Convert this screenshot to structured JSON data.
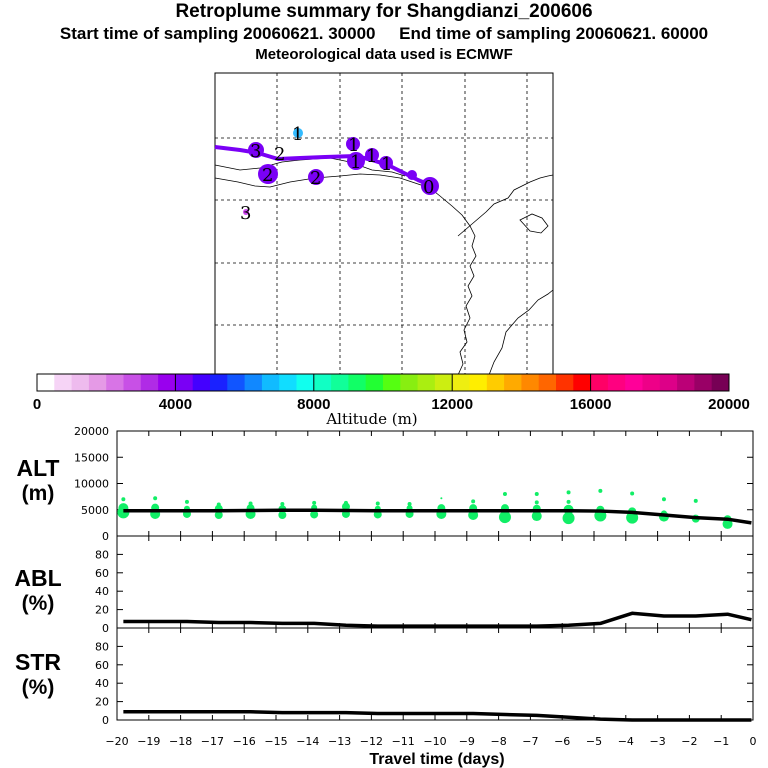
{
  "titles": {
    "main": "Retroplume summary for Shangdianzi_200606",
    "start": "Start time of sampling 20060621. 30000",
    "end": "End time of sampling 20060621. 60000",
    "met": "Meteorological data used is ECMWF"
  },
  "colorbar": {
    "label": "Altitude  (m)",
    "ticks": [
      "0",
      "4000",
      "8000",
      "12000",
      "16000",
      "20000"
    ],
    "colors": [
      "#ffffff",
      "#f6d4f6",
      "#eebbee",
      "#e59ae6",
      "#d874e6",
      "#c850e6",
      "#b02be6",
      "#9900ee",
      "#7a00f5",
      "#4400ff",
      "#1a22ff",
      "#1155ff",
      "#1188ff",
      "#11bbff",
      "#11ddff",
      "#11ffee",
      "#11ffc4",
      "#11ff99",
      "#11ff66",
      "#22ff33",
      "#55ff11",
      "#88ee11",
      "#aaee11",
      "#ccee11",
      "#eeee11",
      "#ffee00",
      "#ffcc00",
      "#ffaa00",
      "#ff8800",
      "#ff6600",
      "#ff3300",
      "#ff0000",
      "#ff0066",
      "#ff0080",
      "#ff0099",
      "#ee0088",
      "#dd0088",
      "#bb0077",
      "#990066",
      "#770055"
    ]
  },
  "map": {
    "labels": [
      {
        "text": "1",
        "color": "#33bbff"
      },
      {
        "text": "3",
        "color": "#7a00f5"
      },
      {
        "text": "2",
        "color": "#7a00f5"
      },
      {
        "text": "2",
        "color": "#7a00f5"
      },
      {
        "text": "2",
        "color": "#7a00f5"
      },
      {
        "text": "1",
        "color": "#7a00f5"
      },
      {
        "text": "1",
        "color": "#7a00f5"
      },
      {
        "text": "1",
        "color": "#7a00f5"
      },
      {
        "text": "1",
        "color": "#7a00f5"
      },
      {
        "text": "0",
        "color": "#7a00f5"
      },
      {
        "text": "3",
        "color": "#cc44ee"
      }
    ]
  },
  "chart_data": [
    {
      "type": "scatter+line",
      "panel": "ALT",
      "ylabel": [
        "ALT",
        "(m)"
      ],
      "ylim": [
        0,
        20000
      ],
      "yticks": [
        "0",
        "5000",
        "10000",
        "15000",
        "20000"
      ],
      "xlim": [
        -20,
        0
      ],
      "line": {
        "x": [
          -19.8,
          -18.8,
          -17.8,
          -16.8,
          -15.8,
          -14.8,
          -13.8,
          -12.8,
          -11.8,
          -10.8,
          -9.8,
          -8.8,
          -7.8,
          -6.8,
          -5.8,
          -4.8,
          -3.8,
          -2.8,
          -1.8,
          -0.8,
          -0.05
        ],
        "y": [
          4800,
          4800,
          4800,
          4800,
          4850,
          4900,
          4900,
          4850,
          4800,
          4800,
          4800,
          4800,
          4800,
          4800,
          4800,
          4750,
          4500,
          4000,
          3500,
          3200,
          2500
        ]
      },
      "dots_color": "#11ee66",
      "dots": [
        {
          "x": -19.8,
          "y": 4500,
          "s": 6
        },
        {
          "x": -19.8,
          "y": 5300,
          "s": 5
        },
        {
          "x": -19.8,
          "y": 7000,
          "s": 2
        },
        {
          "x": -18.8,
          "y": 4200,
          "s": 5
        },
        {
          "x": -18.8,
          "y": 5400,
          "s": 4
        },
        {
          "x": -18.8,
          "y": 7200,
          "s": 2
        },
        {
          "x": -17.8,
          "y": 4200,
          "s": 4
        },
        {
          "x": -17.8,
          "y": 5200,
          "s": 3
        },
        {
          "x": -17.8,
          "y": 6500,
          "s": 2
        },
        {
          "x": -16.8,
          "y": 4000,
          "s": 4
        },
        {
          "x": -16.8,
          "y": 5200,
          "s": 4
        },
        {
          "x": -16.8,
          "y": 6000,
          "s": 2
        },
        {
          "x": -15.8,
          "y": 4200,
          "s": 5
        },
        {
          "x": -15.8,
          "y": 5300,
          "s": 4
        },
        {
          "x": -15.8,
          "y": 6200,
          "s": 2
        },
        {
          "x": -14.8,
          "y": 4000,
          "s": 4
        },
        {
          "x": -14.8,
          "y": 5100,
          "s": 4
        },
        {
          "x": -14.8,
          "y": 6100,
          "s": 2
        },
        {
          "x": -13.8,
          "y": 4100,
          "s": 4
        },
        {
          "x": -13.8,
          "y": 5400,
          "s": 3
        },
        {
          "x": -13.8,
          "y": 6300,
          "s": 2
        },
        {
          "x": -12.8,
          "y": 4200,
          "s": 4
        },
        {
          "x": -12.8,
          "y": 5600,
          "s": 4
        },
        {
          "x": -12.8,
          "y": 6300,
          "s": 2
        },
        {
          "x": -11.8,
          "y": 4100,
          "s": 4
        },
        {
          "x": -11.8,
          "y": 5200,
          "s": 3
        },
        {
          "x": -11.8,
          "y": 6200,
          "s": 2
        },
        {
          "x": -10.8,
          "y": 4200,
          "s": 4
        },
        {
          "x": -10.8,
          "y": 5300,
          "s": 3
        },
        {
          "x": -10.8,
          "y": 6100,
          "s": 2
        },
        {
          "x": -9.8,
          "y": 4200,
          "s": 5
        },
        {
          "x": -9.8,
          "y": 5300,
          "s": 4
        },
        {
          "x": -9.8,
          "y": 7200,
          "s": 1
        },
        {
          "x": -8.8,
          "y": 4000,
          "s": 5
        },
        {
          "x": -8.8,
          "y": 5300,
          "s": 4
        },
        {
          "x": -8.8,
          "y": 6600,
          "s": 2
        },
        {
          "x": -7.8,
          "y": 3600,
          "s": 6
        },
        {
          "x": -7.8,
          "y": 5300,
          "s": 4
        },
        {
          "x": -7.8,
          "y": 8000,
          "s": 2
        },
        {
          "x": -6.8,
          "y": 3800,
          "s": 5
        },
        {
          "x": -6.8,
          "y": 5200,
          "s": 4
        },
        {
          "x": -6.8,
          "y": 6400,
          "s": 2
        },
        {
          "x": -6.8,
          "y": 8000,
          "s": 2
        },
        {
          "x": -5.8,
          "y": 3400,
          "s": 6
        },
        {
          "x": -5.8,
          "y": 5000,
          "s": 5
        },
        {
          "x": -5.8,
          "y": 6500,
          "s": 2
        },
        {
          "x": -5.8,
          "y": 8300,
          "s": 2
        },
        {
          "x": -4.8,
          "y": 3900,
          "s": 6
        },
        {
          "x": -4.8,
          "y": 5000,
          "s": 4
        },
        {
          "x": -4.8,
          "y": 8600,
          "s": 2
        },
        {
          "x": -3.8,
          "y": 3500,
          "s": 6
        },
        {
          "x": -3.8,
          "y": 4700,
          "s": 4
        },
        {
          "x": -3.8,
          "y": 8100,
          "s": 2
        },
        {
          "x": -2.8,
          "y": 3700,
          "s": 5
        },
        {
          "x": -2.8,
          "y": 4300,
          "s": 3
        },
        {
          "x": -2.8,
          "y": 7000,
          "s": 2
        },
        {
          "x": -1.8,
          "y": 3300,
          "s": 4
        },
        {
          "x": -1.8,
          "y": 6700,
          "s": 2
        },
        {
          "x": -0.8,
          "y": 2300,
          "s": 5
        },
        {
          "x": -0.8,
          "y": 3200,
          "s": 4
        }
      ]
    },
    {
      "type": "line",
      "panel": "ABL",
      "ylabel": [
        "ABL",
        "(%)"
      ],
      "ylim": [
        0,
        100
      ],
      "yticks": [
        "0",
        "20",
        "40",
        "60",
        "80"
      ],
      "xlim": [
        -20,
        0
      ],
      "x": [
        -19.8,
        -18.8,
        -17.8,
        -16.8,
        -15.8,
        -14.8,
        -13.8,
        -12.8,
        -11.8,
        -10.8,
        -9.8,
        -8.8,
        -7.8,
        -6.8,
        -5.8,
        -4.8,
        -3.8,
        -2.8,
        -1.8,
        -0.8,
        -0.05
      ],
      "y": [
        7,
        7,
        7,
        6,
        6,
        5,
        5,
        3,
        2,
        2,
        2,
        2,
        2,
        2,
        3,
        5,
        16,
        13,
        13,
        15,
        9
      ]
    },
    {
      "type": "line",
      "panel": "STR",
      "ylabel": [
        "STR",
        "(%)"
      ],
      "ylim": [
        0,
        100
      ],
      "yticks": [
        "0",
        "20",
        "40",
        "60",
        "80"
      ],
      "xlim": [
        -20,
        0
      ],
      "xlabel": "Travel time (days)",
      "xticks": [
        "−20",
        "−19",
        "−18",
        "−17",
        "−16",
        "−15",
        "−14",
        "−13",
        "−12",
        "−11",
        "−10",
        "−9",
        "−8",
        "−7",
        "−6",
        "−5",
        "−4",
        "−3",
        "−2",
        "−1",
        "0"
      ],
      "x": [
        -19.8,
        -18.8,
        -17.8,
        -16.8,
        -15.8,
        -14.8,
        -13.8,
        -12.8,
        -11.8,
        -10.8,
        -9.8,
        -8.8,
        -7.8,
        -6.8,
        -5.8,
        -4.8,
        -3.8,
        -2.8,
        -1.8,
        -0.8,
        -0.05
      ],
      "y": [
        9,
        9,
        9,
        9,
        9,
        8,
        8,
        8,
        7,
        7,
        7,
        7,
        6,
        5,
        3,
        1,
        0,
        0,
        0,
        0,
        0
      ]
    }
  ]
}
